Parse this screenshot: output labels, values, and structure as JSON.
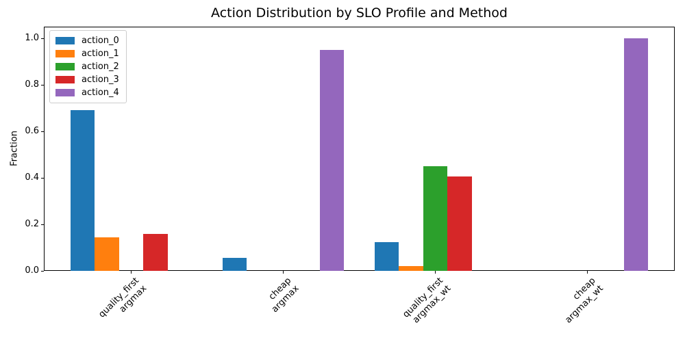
{
  "chart_data": {
    "type": "bar",
    "title": "Action Distribution by SLO Profile and Method",
    "xlabel": "",
    "ylabel": "Fraction",
    "categories": [
      "quality_first\nargmax",
      "cheap\nargmax",
      "quality_first\nargmax_wt",
      "cheap\nargmax_wt"
    ],
    "series": [
      {
        "name": "action_0",
        "color": "#1f77b4",
        "values": [
          0.69,
          0.055,
          0.125,
          0.0
        ]
      },
      {
        "name": "action_1",
        "color": "#ff7f0e",
        "values": [
          0.145,
          0.0,
          0.02,
          0.0
        ]
      },
      {
        "name": "action_2",
        "color": "#2ca02c",
        "values": [
          0.0,
          0.0,
          0.45,
          0.0
        ]
      },
      {
        "name": "action_3",
        "color": "#d62728",
        "values": [
          0.16,
          0.0,
          0.405,
          0.0
        ]
      },
      {
        "name": "action_4",
        "color": "#9467bd",
        "values": [
          0.0,
          0.95,
          0.0,
          1.0
        ]
      }
    ],
    "ylim": [
      0,
      1.05
    ],
    "yticks": [
      0.0,
      0.2,
      0.4,
      0.6,
      0.8,
      1.0
    ],
    "ytick_labels": [
      "0.0",
      "0.2",
      "0.4",
      "0.6",
      "0.8",
      "1.0"
    ],
    "legend_position": "upper left",
    "grid": false,
    "bar_width_data_units": 0.16,
    "x_tick_rotation": 45
  }
}
